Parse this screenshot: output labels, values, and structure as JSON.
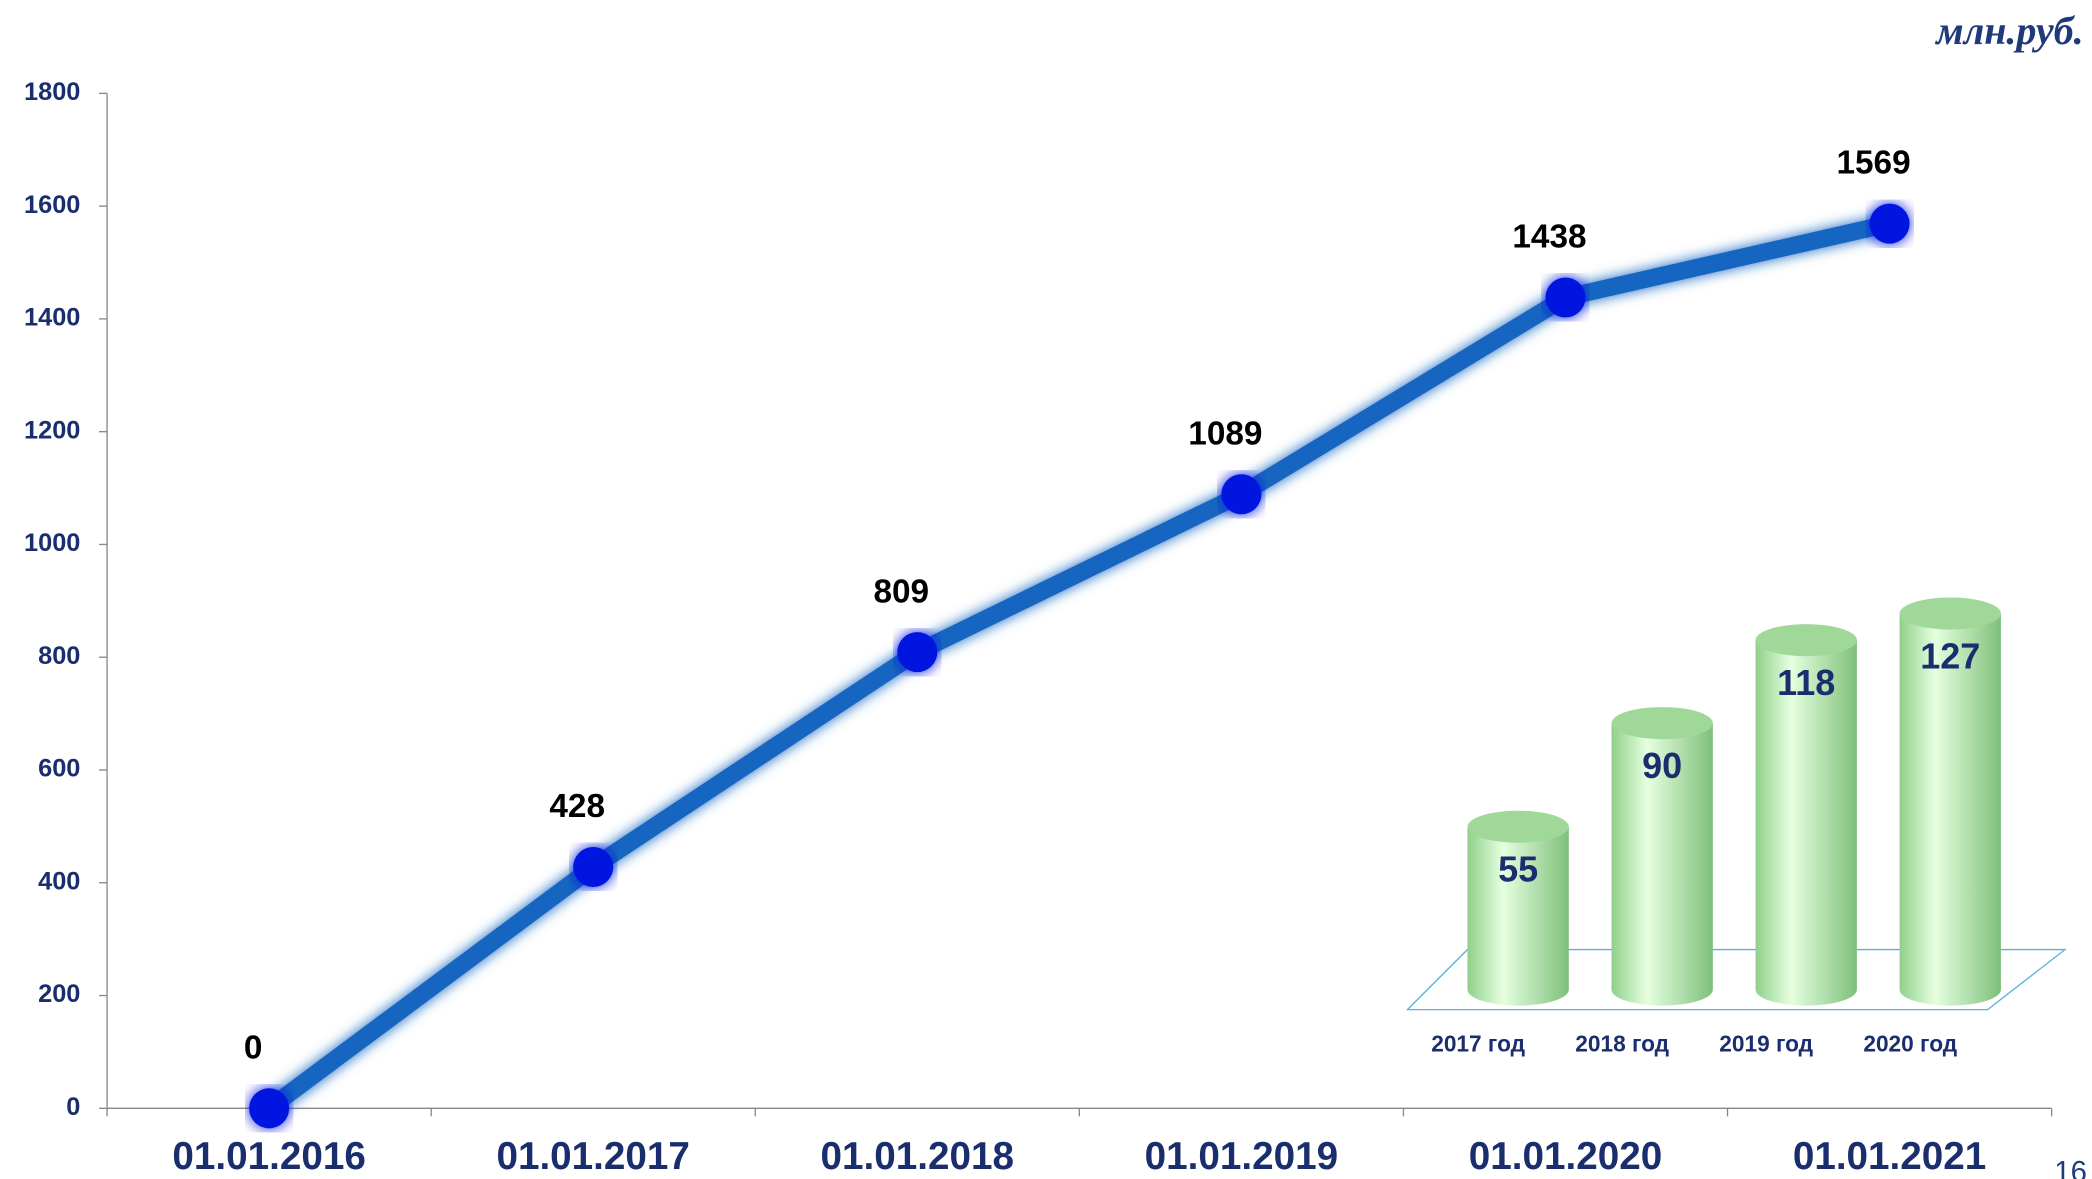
{
  "unit": "млн.руб.",
  "page_number": "16",
  "chart_data": [
    {
      "type": "line",
      "categories": [
        "01.01.2016",
        "01.01.2017",
        "01.01.2018",
        "01.01.2019",
        "01.01.2020",
        "01.01.2021"
      ],
      "values": [
        0,
        428,
        809,
        1089,
        1438,
        1569
      ],
      "color": "#1565c0",
      "marker_color": "#0018e0",
      "ylim": [
        0,
        1800
      ],
      "yticks": [
        0,
        200,
        400,
        600,
        800,
        1000,
        1200,
        1400,
        1600,
        1800
      ]
    },
    {
      "type": "cylinder",
      "categories": [
        "2017 год",
        "2018 год",
        "2019 год",
        "2020 год"
      ],
      "values": [
        55,
        90,
        118,
        127
      ],
      "color": "#b8f0b0"
    }
  ]
}
